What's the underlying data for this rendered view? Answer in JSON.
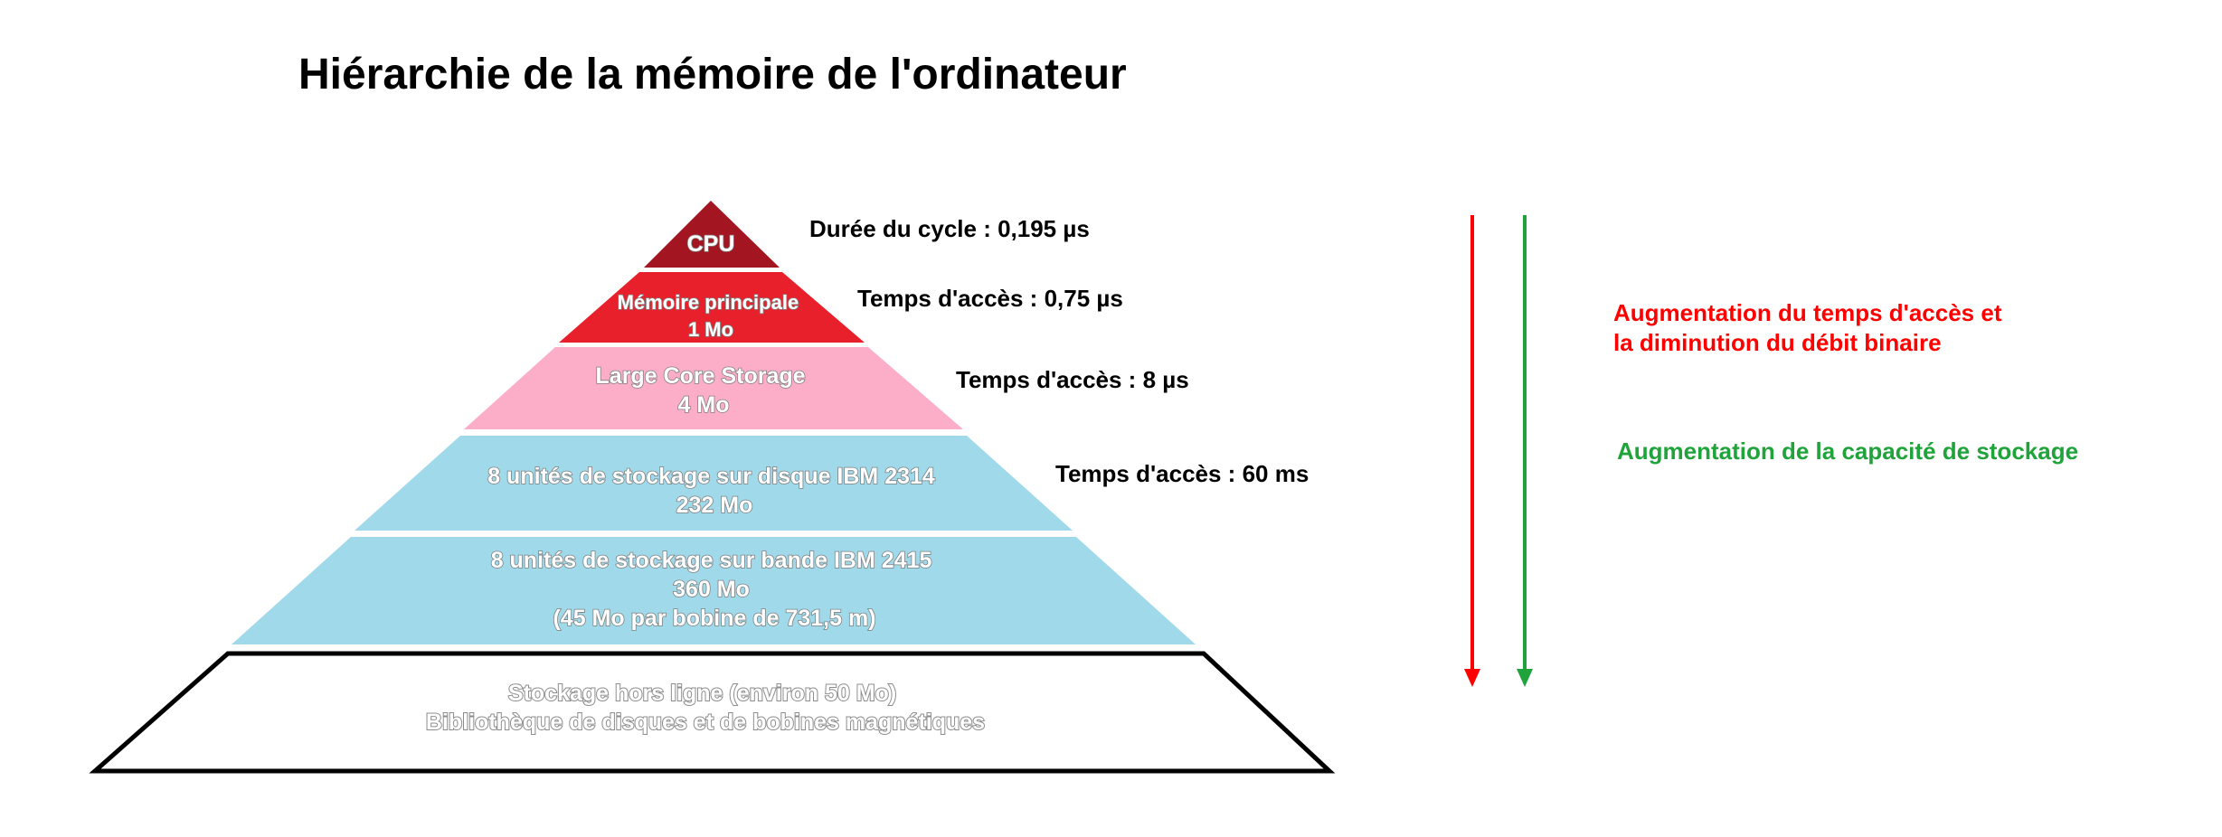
{
  "title": "Hiérarchie de la mémoire de l'ordinateur",
  "layers": [
    {
      "id": "cpu",
      "lines": [
        "CPU"
      ],
      "color": "#a31621"
    },
    {
      "id": "main-memory",
      "lines": [
        "Mémoire principale",
        "1 Mo"
      ],
      "color": "#e8202c"
    },
    {
      "id": "large-core-storage",
      "lines": [
        "Large Core Storage",
        "4 Mo"
      ],
      "color": "#fcadc8"
    },
    {
      "id": "disk-storage",
      "lines": [
        "8 unités de stockage sur disque IBM 2314",
        "232 Mo"
      ],
      "color": "#9fd9ea"
    },
    {
      "id": "tape-storage",
      "lines": [
        "8 unités de stockage sur bande IBM 2415",
        "360 Mo",
        "(45 Mo par bobine de 731,5 m)"
      ],
      "color": "#9fd9ea"
    },
    {
      "id": "offline-storage",
      "lines": [
        "Stockage hors ligne (environ 50 Mo)",
        "Bibliothèque de disques et de bobines magnétiques"
      ],
      "color": "#ffffff"
    }
  ],
  "timing_labels": [
    "Durée du cycle : 0,195 µs",
    "Temps d'accès : 0,75 µs",
    "Temps d'accès : 8 µs",
    "Temps d'accès : 60 ms"
  ],
  "legend": {
    "access_time": {
      "lines": [
        "Augmentation du temps d'accès et",
        "la diminution du débit binaire"
      ],
      "color": "#ff0000",
      "arrow": "down-arrow-icon"
    },
    "capacity": {
      "lines": [
        "Augmentation de la capacité de stockage"
      ],
      "color": "#1fa33a",
      "arrow": "down-arrow-icon"
    }
  }
}
